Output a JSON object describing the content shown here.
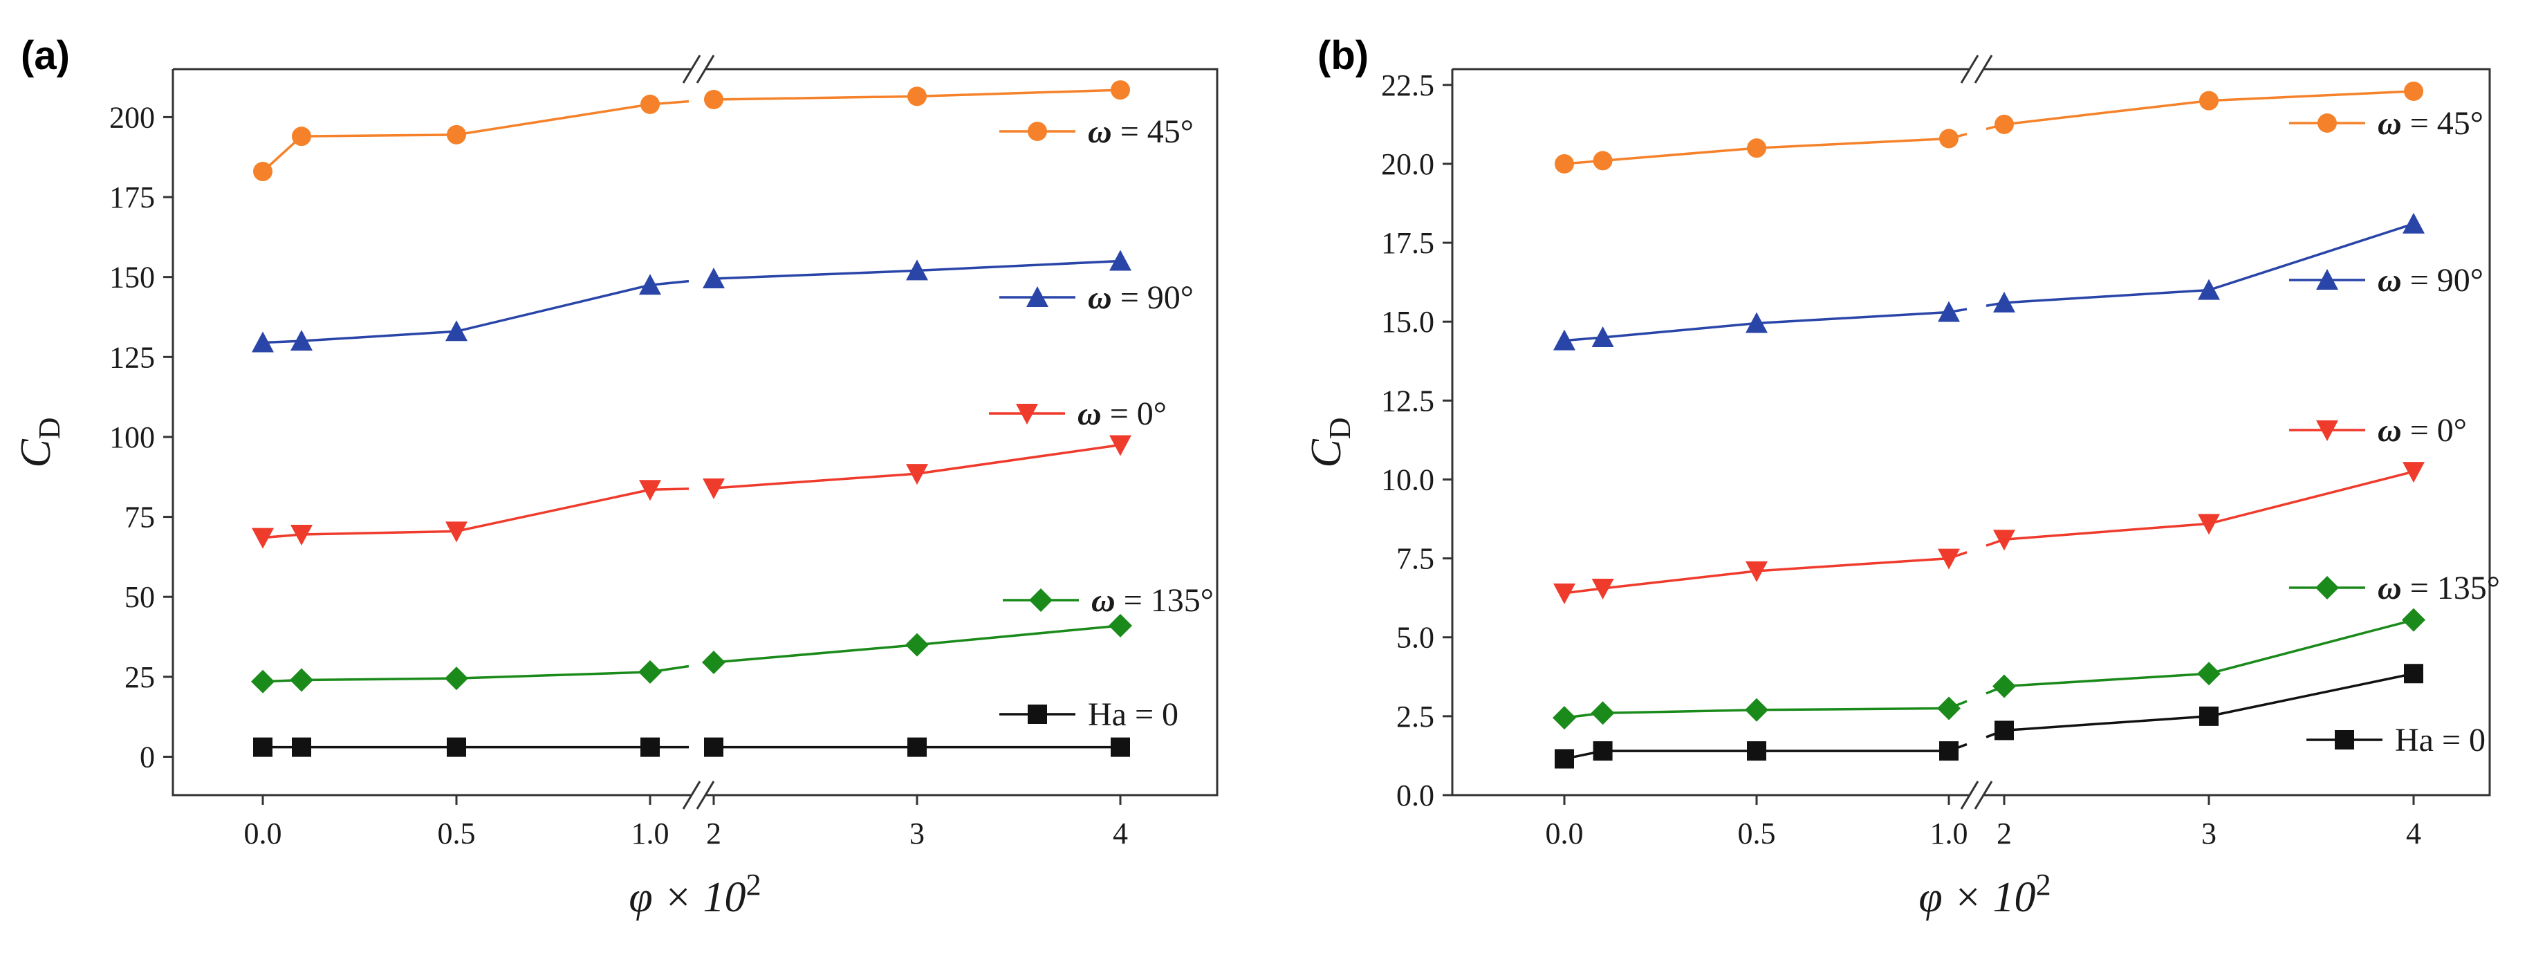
{
  "figure": {
    "panels": [
      {
        "tag": "(a)"
      },
      {
        "tag": "(b)"
      }
    ]
  },
  "chart_data": [
    {
      "type": "line",
      "panel": "(a)",
      "xlabel": "φ × 10",
      "xlabel_exp": "2",
      "ylabel": "C",
      "ylabel_sub": "D",
      "ylim": [
        -12,
        215
      ],
      "yticks": [
        0,
        25,
        50,
        75,
        100,
        125,
        150,
        175,
        200
      ],
      "ytick_labels": [
        "0",
        "25",
        "50",
        "75",
        "100",
        "125",
        "150",
        "175",
        "200"
      ],
      "axis_break": "between 1.0 and 2",
      "x_segments": [
        {
          "values": [
            0.0,
            0.5,
            1.0
          ],
          "labels": [
            "0.0",
            "0.5",
            "1.0"
          ]
        },
        {
          "values": [
            2,
            3,
            4
          ],
          "labels": [
            "2",
            "3",
            "4"
          ]
        }
      ],
      "x": [
        0.0,
        0.1,
        0.5,
        1.0,
        2,
        3,
        4
      ],
      "series": [
        {
          "name": "ω = 45°",
          "symbol": "ω",
          "label_rest": " = 45°",
          "color": "#f5822a",
          "marker": "circle",
          "values": [
            183,
            194,
            194.5,
            204,
            205.5,
            206.5,
            208.5
          ]
        },
        {
          "name": "ω = 90°",
          "symbol": "ω",
          "label_rest": " = 90°",
          "color": "#2a45a8",
          "marker": "triangle-up",
          "values": [
            129.5,
            130,
            133,
            147.5,
            149.5,
            152,
            155
          ]
        },
        {
          "name": "ω = 0°",
          "symbol": "ω",
          "label_rest": " = 0°",
          "color": "#ef3b2c",
          "marker": "triangle-down",
          "values": [
            68.5,
            69.5,
            70.5,
            83.5,
            84,
            88.5,
            97.5
          ]
        },
        {
          "name": "ω = 135°",
          "symbol": "ω",
          "label_rest": " = 135°",
          "color": "#1a8a1a",
          "marker": "diamond",
          "values": [
            23.5,
            24,
            24.5,
            26.5,
            29.5,
            35,
            41
          ]
        },
        {
          "name": "Ha = 0",
          "symbol": "",
          "label_rest": "Ha = 0",
          "color": "#111111",
          "marker": "square",
          "values": [
            3,
            3,
            3,
            3,
            3,
            3,
            3
          ]
        }
      ]
    },
    {
      "type": "line",
      "panel": "(b)",
      "xlabel": "φ × 10",
      "xlabel_exp": "2",
      "ylabel": "C",
      "ylabel_sub": "D",
      "ylim": [
        0,
        23
      ],
      "yticks": [
        0,
        2.5,
        5,
        7.5,
        10,
        12.5,
        15,
        17.5,
        20,
        22.5
      ],
      "ytick_labels": [
        "0.0",
        "2.5",
        "5.0",
        "7.5",
        "10.0",
        "12.5",
        "15.0",
        "17.5",
        "20.0",
        "22.5"
      ],
      "axis_break": "between 1.0 and 2",
      "x_segments": [
        {
          "values": [
            0.0,
            0.5,
            1.0
          ],
          "labels": [
            "0.0",
            "0.5",
            "1.0"
          ]
        },
        {
          "values": [
            2,
            3,
            4
          ],
          "labels": [
            "2",
            "3",
            "4"
          ]
        }
      ],
      "x": [
        0.0,
        0.1,
        0.5,
        1.0,
        2,
        3,
        4
      ],
      "series": [
        {
          "name": "ω = 45°",
          "symbol": "ω",
          "label_rest": " = 45°",
          "color": "#f5822a",
          "marker": "circle",
          "values": [
            20.0,
            20.1,
            20.5,
            20.8,
            21.25,
            22.0,
            22.3
          ]
        },
        {
          "name": "ω = 90°",
          "symbol": "ω",
          "label_rest": " = 90°",
          "color": "#2a45a8",
          "marker": "triangle-up",
          "values": [
            14.4,
            14.5,
            14.95,
            15.3,
            15.6,
            16.0,
            18.1
          ]
        },
        {
          "name": "ω = 0°",
          "symbol": "ω",
          "label_rest": " = 0°",
          "color": "#ef3b2c",
          "marker": "triangle-down",
          "values": [
            6.4,
            6.55,
            7.1,
            7.5,
            8.1,
            8.6,
            10.25
          ]
        },
        {
          "name": "ω = 135°",
          "symbol": "ω",
          "label_rest": " = 135°",
          "color": "#1a8a1a",
          "marker": "diamond",
          "values": [
            2.45,
            2.6,
            2.7,
            2.75,
            3.45,
            3.85,
            5.55
          ]
        },
        {
          "name": "Ha = 0",
          "symbol": "",
          "label_rest": "Ha = 0",
          "color": "#111111",
          "marker": "square",
          "values": [
            1.15,
            1.4,
            1.4,
            1.4,
            2.05,
            2.5,
            3.85
          ]
        }
      ]
    }
  ]
}
